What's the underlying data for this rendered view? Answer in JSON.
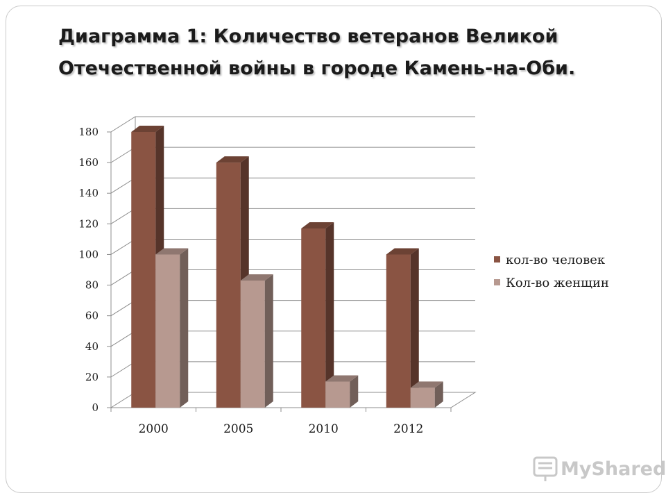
{
  "title_lines": [
    "Диаграмма 1:  Количество ветеранов Великой",
    "Отечественной войны в городе Камень-на-Оби."
  ],
  "watermark": "MyShared",
  "chart_data": {
    "type": "bar",
    "categories": [
      "2000",
      "2005",
      "2010",
      "2012"
    ],
    "series": [
      {
        "name": "кол-во человек",
        "values": [
          180,
          160,
          117,
          100
        ],
        "color": "#8a5443"
      },
      {
        "name": "Кол-во женщин",
        "values": [
          100,
          83,
          17,
          13
        ],
        "color": "#b79990"
      }
    ],
    "ylim": [
      0,
      180
    ],
    "yticks": [
      0,
      20,
      40,
      60,
      80,
      100,
      120,
      140,
      160,
      180
    ],
    "grid": true,
    "legend": "right",
    "style": "3d-columns"
  }
}
